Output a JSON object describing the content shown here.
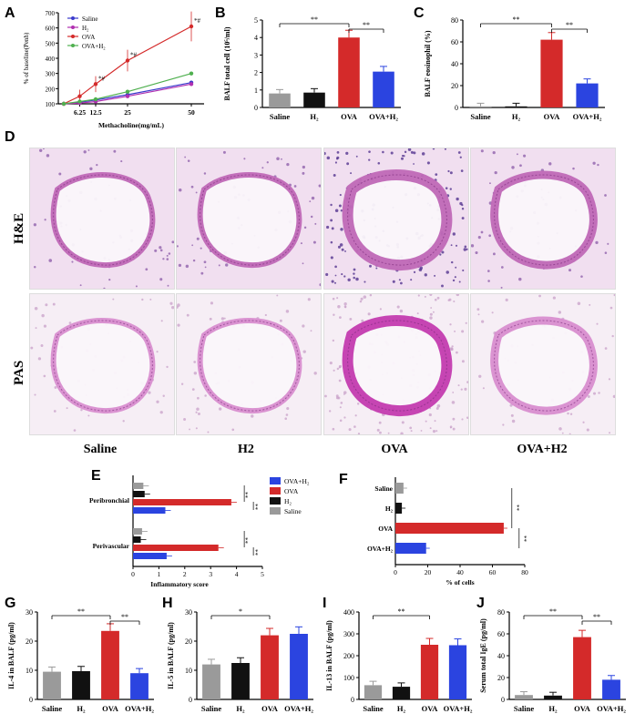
{
  "panel_labels": {
    "A": "A",
    "B": "B",
    "C": "C",
    "D": "D",
    "E": "E",
    "F": "F",
    "G": "G",
    "H": "H",
    "I": "I",
    "J": "J"
  },
  "colors": {
    "saline": "#9a9a9a",
    "h2": "#111111",
    "ova": "#d42a2a",
    "ovah2": "#2b44e0",
    "sal_line": "#3a3acc",
    "h2_line": "#b030b0",
    "ova_line": "#d42a2a",
    "ovah2_line": "#4fb04f"
  },
  "panel_A": {
    "ylabel": "% of baseline(Penh)",
    "xlabel": "Methacholine(mg/mL)",
    "legend": [
      "Saline",
      "H2",
      "OVA",
      "OVA+H2"
    ],
    "chart_data": {
      "type": "line",
      "x": [
        "0",
        "6.25",
        "12.5",
        "25",
        "50"
      ],
      "yticks": [
        "100",
        "200",
        "300",
        "400",
        "500",
        "600",
        "700"
      ],
      "ylim": [
        100,
        700
      ],
      "series": [
        {
          "name": "Saline",
          "values": [
            100,
            110,
            125,
            160,
            240
          ]
        },
        {
          "name": "H2",
          "values": [
            100,
            105,
            115,
            150,
            230
          ]
        },
        {
          "name": "OVA",
          "values": [
            100,
            150,
            230,
            385,
            610
          ]
        },
        {
          "name": "OVA+H2",
          "values": [
            100,
            115,
            130,
            180,
            300
          ]
        }
      ],
      "annotations": [
        "*#",
        "*#",
        "*#"
      ]
    }
  },
  "panel_B": {
    "ylabel": "BALF total cell (10⁵/ml)",
    "chart_data": {
      "type": "bar",
      "categories": [
        "Saline",
        "H2",
        "OVA",
        "OVA+H2"
      ],
      "values": [
        0.8,
        0.85,
        4.0,
        2.05
      ],
      "ylim": [
        0,
        5
      ],
      "yticks": [
        "0",
        "1",
        "2",
        "3",
        "4",
        "5"
      ]
    },
    "sig": [
      "**",
      "**"
    ]
  },
  "panel_C": {
    "ylabel": "BALF eosinophil (%)",
    "chart_data": {
      "type": "bar",
      "categories": [
        "Saline",
        "H2",
        "OVA",
        "OVA+H2"
      ],
      "values": [
        1,
        1,
        62,
        22
      ],
      "ylim": [
        0,
        80
      ],
      "yticks": [
        "0",
        "20",
        "40",
        "60",
        "80"
      ]
    },
    "sig": [
      "**",
      "**"
    ]
  },
  "panel_D": {
    "row_labels": [
      "H&E",
      "PAS"
    ],
    "col_labels": [
      "Saline",
      "H2",
      "OVA",
      "OVA+H2"
    ]
  },
  "panel_E": {
    "xlabel": "Inflammatory score",
    "groups": [
      "Peribronchial",
      "Perivascular"
    ],
    "legend": [
      "OVA+H2",
      "OVA",
      "H2",
      "Saline"
    ],
    "chart_data": {
      "type": "bar",
      "orientation": "horizontal",
      "xlim": [
        0,
        5
      ],
      "xticks": [
        "0",
        "1",
        "2",
        "3",
        "4",
        "5"
      ],
      "series": [
        {
          "name": "Saline",
          "values": [
            0.4,
            0.35
          ]
        },
        {
          "name": "H2",
          "values": [
            0.45,
            0.3
          ]
        },
        {
          "name": "OVA",
          "values": [
            3.8,
            3.3
          ]
        },
        {
          "name": "OVA+H2",
          "values": [
            1.25,
            1.3
          ]
        }
      ]
    },
    "sig": [
      "**",
      "**",
      "**",
      "**"
    ]
  },
  "panel_F": {
    "xlabel": "% of cells",
    "chart_data": {
      "type": "bar",
      "orientation": "horizontal",
      "categories": [
        "Saline",
        "H2",
        "OVA",
        "OVA+H2"
      ],
      "values": [
        5,
        4,
        67,
        19
      ],
      "xlim": [
        0,
        80
      ],
      "xticks": [
        "0",
        "20",
        "40",
        "60",
        "80"
      ]
    },
    "sig": [
      "**",
      "**"
    ]
  },
  "panel_G": {
    "ylabel": "IL-4 in BALF (pg/ml)",
    "chart_data": {
      "type": "bar",
      "categories": [
        "Saline",
        "H2",
        "OVA",
        "OVA+H2"
      ],
      "values": [
        9.5,
        9.7,
        23.5,
        9.0
      ],
      "ylim": [
        0,
        30
      ],
      "yticks": [
        "0",
        "10",
        "20",
        "30"
      ]
    },
    "sig": [
      "**",
      "**"
    ]
  },
  "panel_H": {
    "ylabel": "IL-5 in BALF (pg/ml)",
    "chart_data": {
      "type": "bar",
      "categories": [
        "Saline",
        "H2",
        "OVA",
        "OVA+H2"
      ],
      "values": [
        12,
        12.5,
        22,
        22.5
      ],
      "ylim": [
        0,
        30
      ],
      "yticks": [
        "0",
        "10",
        "20",
        "30"
      ]
    },
    "sig": [
      "*"
    ]
  },
  "panel_I": {
    "ylabel": "IL-13 in BALF (pg/ml)",
    "chart_data": {
      "type": "bar",
      "categories": [
        "Saline",
        "H2",
        "OVA",
        "OVA+H2"
      ],
      "values": [
        65,
        58,
        250,
        248
      ],
      "ylim": [
        0,
        400
      ],
      "yticks": [
        "0",
        "100",
        "200",
        "300",
        "400"
      ]
    },
    "sig": [
      "**"
    ]
  },
  "panel_J": {
    "ylabel": "Serum total IgE (pg/ml)",
    "chart_data": {
      "type": "bar",
      "categories": [
        "Saline",
        "H2",
        "OVA",
        "OVA+H2"
      ],
      "values": [
        4,
        3.5,
        57,
        18
      ],
      "ylim": [
        0,
        80
      ],
      "yticks": [
        "0",
        "20",
        "40",
        "60",
        "80"
      ]
    },
    "sig": [
      "**",
      "**"
    ]
  }
}
